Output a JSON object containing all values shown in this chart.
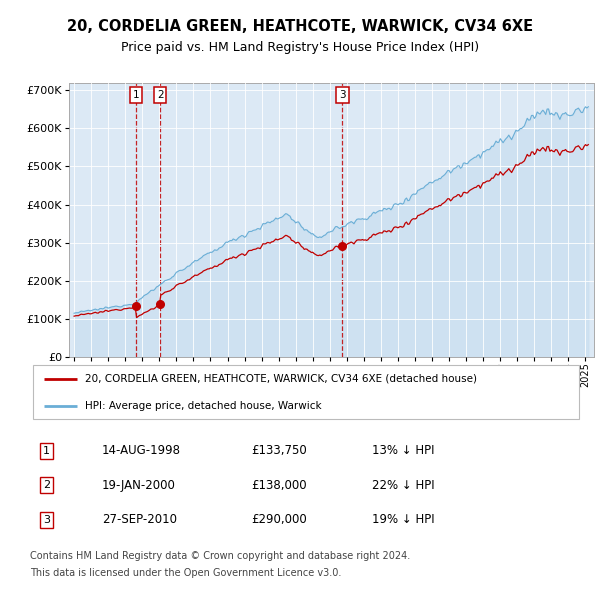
{
  "title": "20, CORDELIA GREEN, HEATHCOTE, WARWICK, CV34 6XE",
  "subtitle": "Price paid vs. HM Land Registry's House Price Index (HPI)",
  "legend_line1": "20, CORDELIA GREEN, HEATHCOTE, WARWICK, CV34 6XE (detached house)",
  "legend_line2": "HPI: Average price, detached house, Warwick",
  "transactions": [
    {
      "num": 1,
      "date": "14-AUG-1998",
      "year": 1998.62,
      "price": 133750,
      "label": "13% ↓ HPI"
    },
    {
      "num": 2,
      "date": "19-JAN-2000",
      "year": 2000.05,
      "price": 138000,
      "label": "22% ↓ HPI"
    },
    {
      "num": 3,
      "date": "27-SEP-2010",
      "year": 2010.74,
      "price": 290000,
      "label": "19% ↓ HPI"
    }
  ],
  "hpi_color": "#6aaed6",
  "hpi_fill_color": "#c9dff0",
  "price_color": "#c00000",
  "plot_bg": "#e8f0f8",
  "chart_bg": "#dce9f5",
  "footnote1": "Contains HM Land Registry data © Crown copyright and database right 2024.",
  "footnote2": "This data is licensed under the Open Government Licence v3.0.",
  "ylim": [
    0,
    720000
  ],
  "xlim_start": 1994.7,
  "xlim_end": 2025.5
}
